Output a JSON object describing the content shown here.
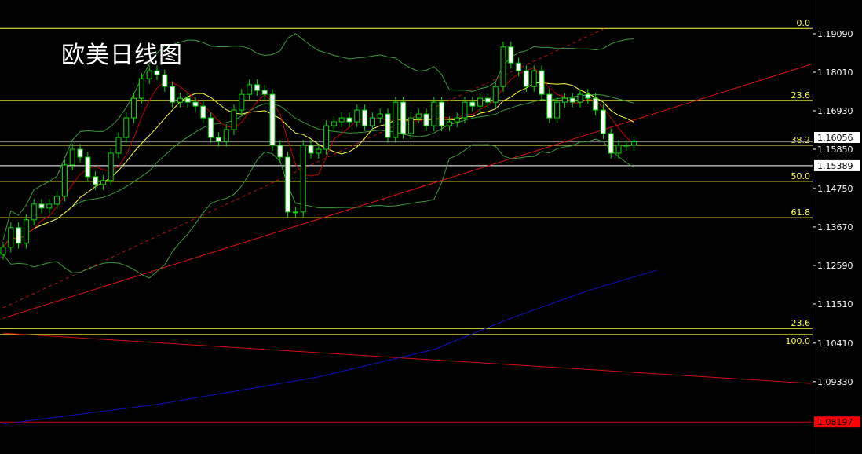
{
  "title": "欧美日线图",
  "chart_data": {
    "type": "candlestick",
    "title": "欧美日线图",
    "ylim": [
      1.071,
      1.199
    ],
    "y_ticks": [
      "1.19090",
      "1.18010",
      "1.16930",
      "1.15850",
      "1.14750",
      "1.13670",
      "1.12590",
      "1.11510",
      "1.10410",
      "1.09330"
    ],
    "close": [
      1.131,
      1.1365,
      1.1321,
      1.1387,
      1.1431,
      1.142,
      1.1431,
      1.1453,
      1.1541,
      1.1585,
      1.1563,
      1.1508,
      1.1486,
      1.1497,
      1.1574,
      1.1618,
      1.1673,
      1.1728,
      1.1783,
      1.1805,
      1.1794,
      1.1761,
      1.1717,
      1.1728,
      1.1717,
      1.1706,
      1.1673,
      1.1618,
      1.1607,
      1.164,
      1.1695,
      1.1739,
      1.1766,
      1.175,
      1.1739,
      1.1596,
      1.1563,
      1.1409,
      1.1409,
      1.1596,
      1.1574,
      1.1585,
      1.1651,
      1.1662,
      1.1673,
      1.1662,
      1.1695,
      1.1651,
      1.1673,
      1.1684,
      1.1618,
      1.1717,
      1.1629,
      1.1673,
      1.1684,
      1.1651,
      1.1717,
      1.1651,
      1.1662,
      1.1673,
      1.1717,
      1.1706,
      1.1728,
      1.1717,
      1.1761,
      1.1872,
      1.1827,
      1.1805,
      1.1761,
      1.1805,
      1.1739,
      1.1673,
      1.1717,
      1.1728,
      1.1717,
      1.1739,
      1.1728,
      1.1695,
      1.1629,
      1.1574,
      1.1596,
      1.1596,
      1.1606
    ],
    "fib_levels": [
      {
        "label": "0.0",
        "price": 1.1924
      },
      {
        "label": "23.6",
        "price": 1.1722
      },
      {
        "label": "38.2",
        "price": 1.1596
      },
      {
        "label": "50.0",
        "price": 1.1495
      },
      {
        "label": "61.8",
        "price": 1.1393
      },
      {
        "label": "23.6",
        "price": 1.1082
      },
      {
        "label": "100.0",
        "price": 1.1065
      }
    ],
    "price_labels": [
      {
        "text": "1.16056",
        "price": 1.16056,
        "bg": "#ffffff",
        "fg": "#000000",
        "line": "#888888"
      },
      {
        "text": "1.15389",
        "price": 1.15389,
        "bg": "#ffffff",
        "fg": "#000000",
        "line": "#ffffff"
      },
      {
        "text": "1.08197",
        "price": 1.08197,
        "bg": "#ff0000",
        "fg": "#000000",
        "line": "#cc0000"
      }
    ],
    "trendlines": [
      {
        "style": "solid",
        "color": "#e01010",
        "start_index": 0,
        "start_price": 1.1111,
        "end_index": 105,
        "end_price": 1.1823
      },
      {
        "style": "dashed",
        "color": "#c01010",
        "start_index": 0,
        "start_price": 1.114,
        "end_index": 78.5,
        "end_price": 1.1927
      },
      {
        "style": "solid",
        "color": "#d01010",
        "start_index": 0,
        "start_price": 1.1069,
        "end_index": 105,
        "end_price": 1.0928
      }
    ],
    "long_ma": {
      "color": "#1010c0",
      "points": [
        [
          0,
          1.0814
        ],
        [
          20,
          1.0869
        ],
        [
          41,
          1.0946
        ],
        [
          56,
          1.1023
        ],
        [
          66,
          1.1111
        ],
        [
          76,
          1.1188
        ],
        [
          85,
          1.1246
        ]
      ]
    },
    "colors": {
      "candle": "#00e000",
      "bear_fill": "#ffffff",
      "bull_fill": "#000000",
      "ma_fast": "#c00000",
      "ma_slow": "#ffff40",
      "bands": "#3a9a3a",
      "fib": "#ffff40",
      "axis": "#ffffff"
    }
  }
}
